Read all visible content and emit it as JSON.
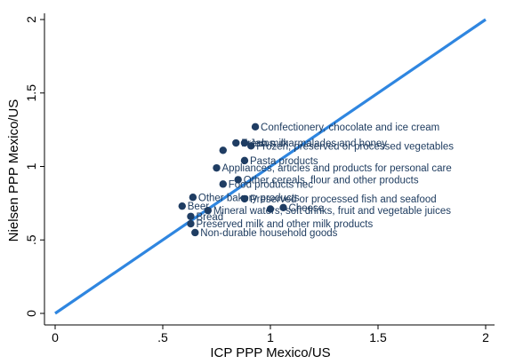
{
  "chart_data": {
    "type": "scatter",
    "xlabel": "ICP PPP Mexico/US",
    "ylabel": "Nielsen PPP Mexico/US",
    "xlim": [
      0,
      2
    ],
    "ylim": [
      0,
      2
    ],
    "xticks": [
      {
        "value": 0,
        "label": "0"
      },
      {
        "value": 0.5,
        "label": ".5"
      },
      {
        "value": 1,
        "label": "1"
      },
      {
        "value": 1.5,
        "label": "1.5"
      },
      {
        "value": 2,
        "label": "2"
      }
    ],
    "yticks": [
      {
        "value": 0,
        "label": "0"
      },
      {
        "value": 0.5,
        "label": ".5"
      },
      {
        "value": 1,
        "label": "1"
      },
      {
        "value": 1.5,
        "label": "1.5"
      },
      {
        "value": 2,
        "label": "2"
      }
    ],
    "grid": false,
    "legend": "none",
    "reference_line": {
      "from": [
        0,
        0
      ],
      "to": [
        2,
        2
      ],
      "color": "#2f86e0"
    },
    "marker_color": "#1f3d63",
    "label_color": "#1c3a5e",
    "points": [
      {
        "label": "Confectionery, chocolate and ice cream",
        "x": 0.93,
        "y": 1.27
      },
      {
        "label": "Jams, marmalades and honey",
        "x": 0.88,
        "y": 1.16
      },
      {
        "label": "Frozen, preserved or processed vegetables",
        "x": 0.91,
        "y": 1.14
      },
      {
        "label": "Fresh milk",
        "x": 0.84,
        "y": 1.16
      },
      {
        "label": "",
        "x": 0.78,
        "y": 1.11
      },
      {
        "label": "Pasta products",
        "x": 0.88,
        "y": 1.04
      },
      {
        "label": "Appliances, articles and products for personal care",
        "x": 0.75,
        "y": 0.99
      },
      {
        "label": "Other cereals, flour and other products",
        "x": 0.85,
        "y": 0.91
      },
      {
        "label": "Food products nec",
        "x": 0.78,
        "y": 0.88
      },
      {
        "label": "Other bakery products",
        "x": 0.64,
        "y": 0.79
      },
      {
        "label": "Preserved or processed fish and seafood",
        "x": 0.88,
        "y": 0.78
      },
      {
        "label": "Beer",
        "x": 0.59,
        "y": 0.73
      },
      {
        "label": "Mineral waters, soft drinks, fruit and vegetable juices",
        "x": 0.71,
        "y": 0.7
      },
      {
        "label": "Cheese",
        "x": 1.06,
        "y": 0.72
      },
      {
        "label": "",
        "x": 1.0,
        "y": 0.71
      },
      {
        "label": "Bread",
        "x": 0.63,
        "y": 0.66
      },
      {
        "label": "Preserved milk and other milk products",
        "x": 0.63,
        "y": 0.61
      },
      {
        "label": "Non-durable household goods",
        "x": 0.65,
        "y": 0.55
      }
    ]
  }
}
